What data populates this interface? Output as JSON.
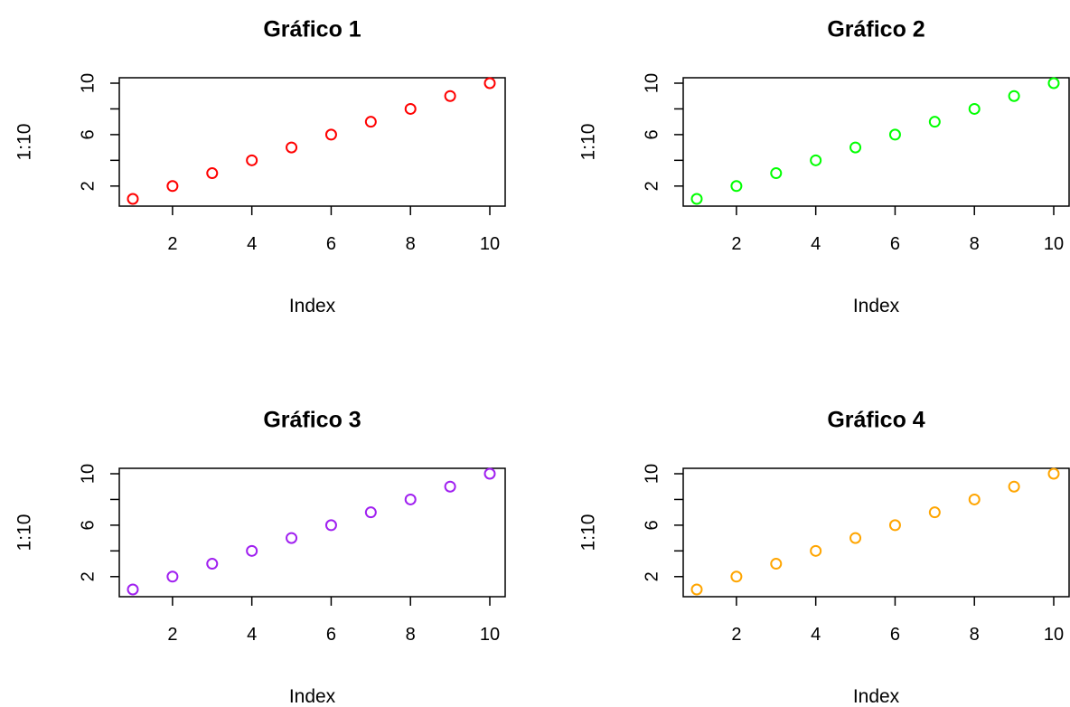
{
  "chart_data": [
    {
      "type": "scatter",
      "title": "Gráfico 1",
      "xlabel": "Index",
      "ylabel": "1:10",
      "x": [
        1,
        2,
        3,
        4,
        5,
        6,
        7,
        8,
        9,
        10
      ],
      "y": [
        1,
        2,
        3,
        4,
        5,
        6,
        7,
        8,
        9,
        10
      ],
      "xlim": [
        1,
        10
      ],
      "ylim": [
        1,
        10
      ],
      "x_ticks": [
        2,
        4,
        6,
        8,
        10
      ],
      "y_ticks": [
        2,
        6,
        10
      ],
      "y_minor_ticks": [
        4,
        8
      ],
      "color": "#ff0000",
      "marker": "open-circle",
      "grid": false
    },
    {
      "type": "scatter",
      "title": "Gráfico 2",
      "xlabel": "Index",
      "ylabel": "1:10",
      "x": [
        1,
        2,
        3,
        4,
        5,
        6,
        7,
        8,
        9,
        10
      ],
      "y": [
        1,
        2,
        3,
        4,
        5,
        6,
        7,
        8,
        9,
        10
      ],
      "xlim": [
        1,
        10
      ],
      "ylim": [
        1,
        10
      ],
      "x_ticks": [
        2,
        4,
        6,
        8,
        10
      ],
      "y_ticks": [
        2,
        6,
        10
      ],
      "y_minor_ticks": [
        4,
        8
      ],
      "color": "#00ff00",
      "marker": "open-circle",
      "grid": false
    },
    {
      "type": "scatter",
      "title": "Gráfico 3",
      "xlabel": "Index",
      "ylabel": "1:10",
      "x": [
        1,
        2,
        3,
        4,
        5,
        6,
        7,
        8,
        9,
        10
      ],
      "y": [
        1,
        2,
        3,
        4,
        5,
        6,
        7,
        8,
        9,
        10
      ],
      "xlim": [
        1,
        10
      ],
      "ylim": [
        1,
        10
      ],
      "x_ticks": [
        2,
        4,
        6,
        8,
        10
      ],
      "y_ticks": [
        2,
        6,
        10
      ],
      "y_minor_ticks": [
        4,
        8
      ],
      "color": "#a020f0",
      "marker": "open-circle",
      "grid": false
    },
    {
      "type": "scatter",
      "title": "Gráfico 4",
      "xlabel": "Index",
      "ylabel": "1:10",
      "x": [
        1,
        2,
        3,
        4,
        5,
        6,
        7,
        8,
        9,
        10
      ],
      "y": [
        1,
        2,
        3,
        4,
        5,
        6,
        7,
        8,
        9,
        10
      ],
      "xlim": [
        1,
        10
      ],
      "ylim": [
        1,
        10
      ],
      "x_ticks": [
        2,
        4,
        6,
        8,
        10
      ],
      "y_ticks": [
        2,
        6,
        10
      ],
      "y_minor_ticks": [
        4,
        8
      ],
      "color": "#ffa500",
      "marker": "open-circle",
      "grid": false
    }
  ]
}
